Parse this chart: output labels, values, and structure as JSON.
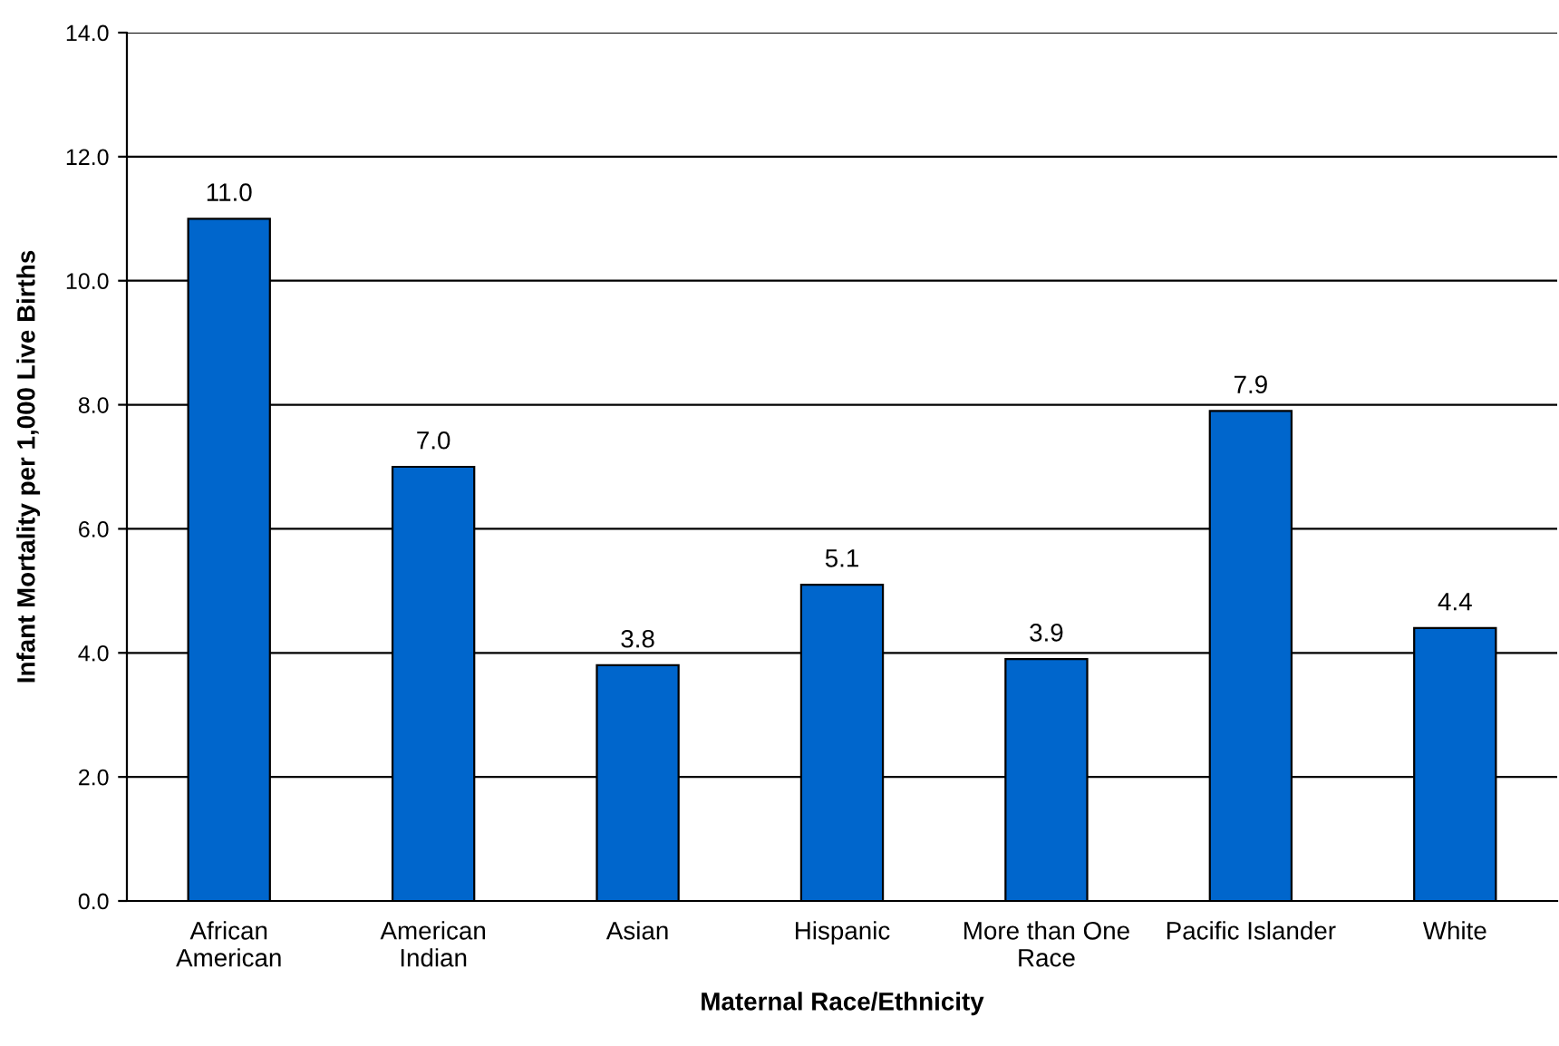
{
  "chart_data": {
    "type": "bar",
    "xlabel": "Maternal Race/Ethnicity",
    "ylabel": "Infant Mortality per 1,000 Live Births",
    "categories": [
      "African\nAmerican",
      "American\nIndian",
      "Asian",
      "Hispanic",
      "More than One\nRace",
      "Pacific Islander",
      "White"
    ],
    "values": [
      11.0,
      7.0,
      3.8,
      5.1,
      3.9,
      7.9,
      4.4
    ],
    "value_labels": [
      "11.0",
      "7.0",
      "3.8",
      "5.1",
      "3.9",
      "7.9",
      "4.4"
    ],
    "color": "#0066cc",
    "ylim": [
      0,
      14
    ],
    "yticks": [
      {
        "value": 0,
        "label": "0.0"
      },
      {
        "value": 2,
        "label": "2.0"
      },
      {
        "value": 4,
        "label": "4.0"
      },
      {
        "value": 6,
        "label": "6.0"
      },
      {
        "value": 8,
        "label": "8.0"
      },
      {
        "value": 10,
        "label": "10.0"
      },
      {
        "value": 12,
        "label": "12.0"
      },
      {
        "value": 14,
        "label": "14.0"
      }
    ],
    "grid": "y"
  }
}
